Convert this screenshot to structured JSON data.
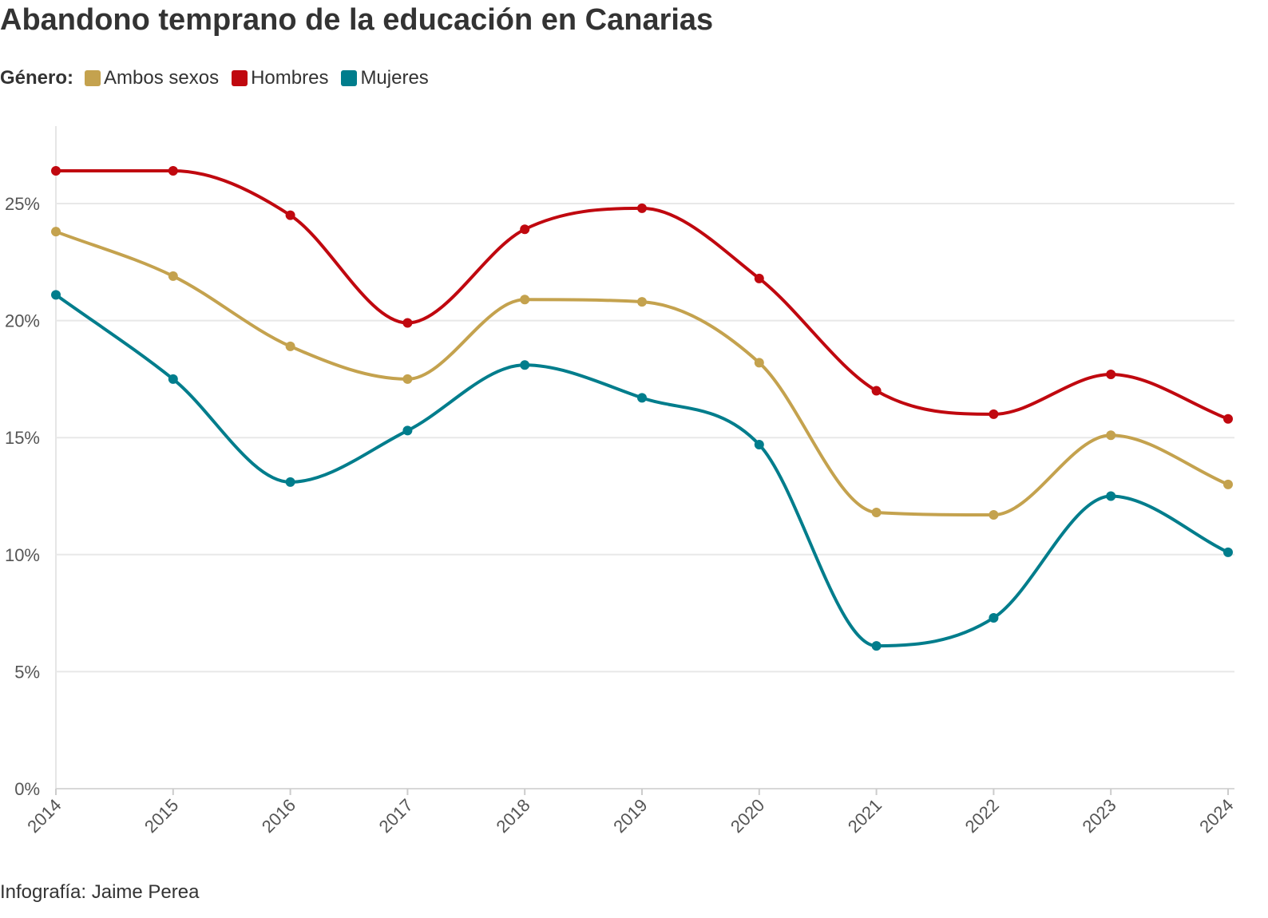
{
  "title": "Abandono temprano de la educación en Canarias",
  "legend_label": "Género:",
  "credit": "Infografía: Jaime Perea",
  "chart_data": {
    "type": "line",
    "title": "Abandono temprano de la educación en Canarias",
    "xlabel": "",
    "ylabel": "",
    "x": [
      "2014",
      "2015",
      "2016",
      "2017",
      "2018",
      "2019",
      "2020",
      "2021",
      "2022",
      "2023",
      "2024"
    ],
    "ylim": [
      0,
      28
    ],
    "yticks": [
      "0%",
      "5%",
      "10%",
      "15%",
      "20%",
      "25%"
    ],
    "ytick_values": [
      0,
      5,
      10,
      15,
      20,
      25
    ],
    "grid": true,
    "legend_position": "top-left",
    "series": [
      {
        "name": "Ambos sexos",
        "color": "#c4a24e",
        "values": [
          23.8,
          21.9,
          18.9,
          17.5,
          20.9,
          20.8,
          18.2,
          11.8,
          11.7,
          15.1,
          13.0
        ]
      },
      {
        "name": "Hombres",
        "color": "#c0080f",
        "values": [
          26.4,
          26.4,
          24.5,
          19.9,
          23.9,
          24.8,
          21.8,
          17.0,
          16.0,
          17.7,
          15.8
        ]
      },
      {
        "name": "Mujeres",
        "color": "#007d8c",
        "values": [
          21.1,
          17.5,
          13.1,
          15.3,
          18.1,
          16.7,
          14.7,
          6.1,
          7.3,
          12.5,
          10.1
        ]
      }
    ]
  }
}
